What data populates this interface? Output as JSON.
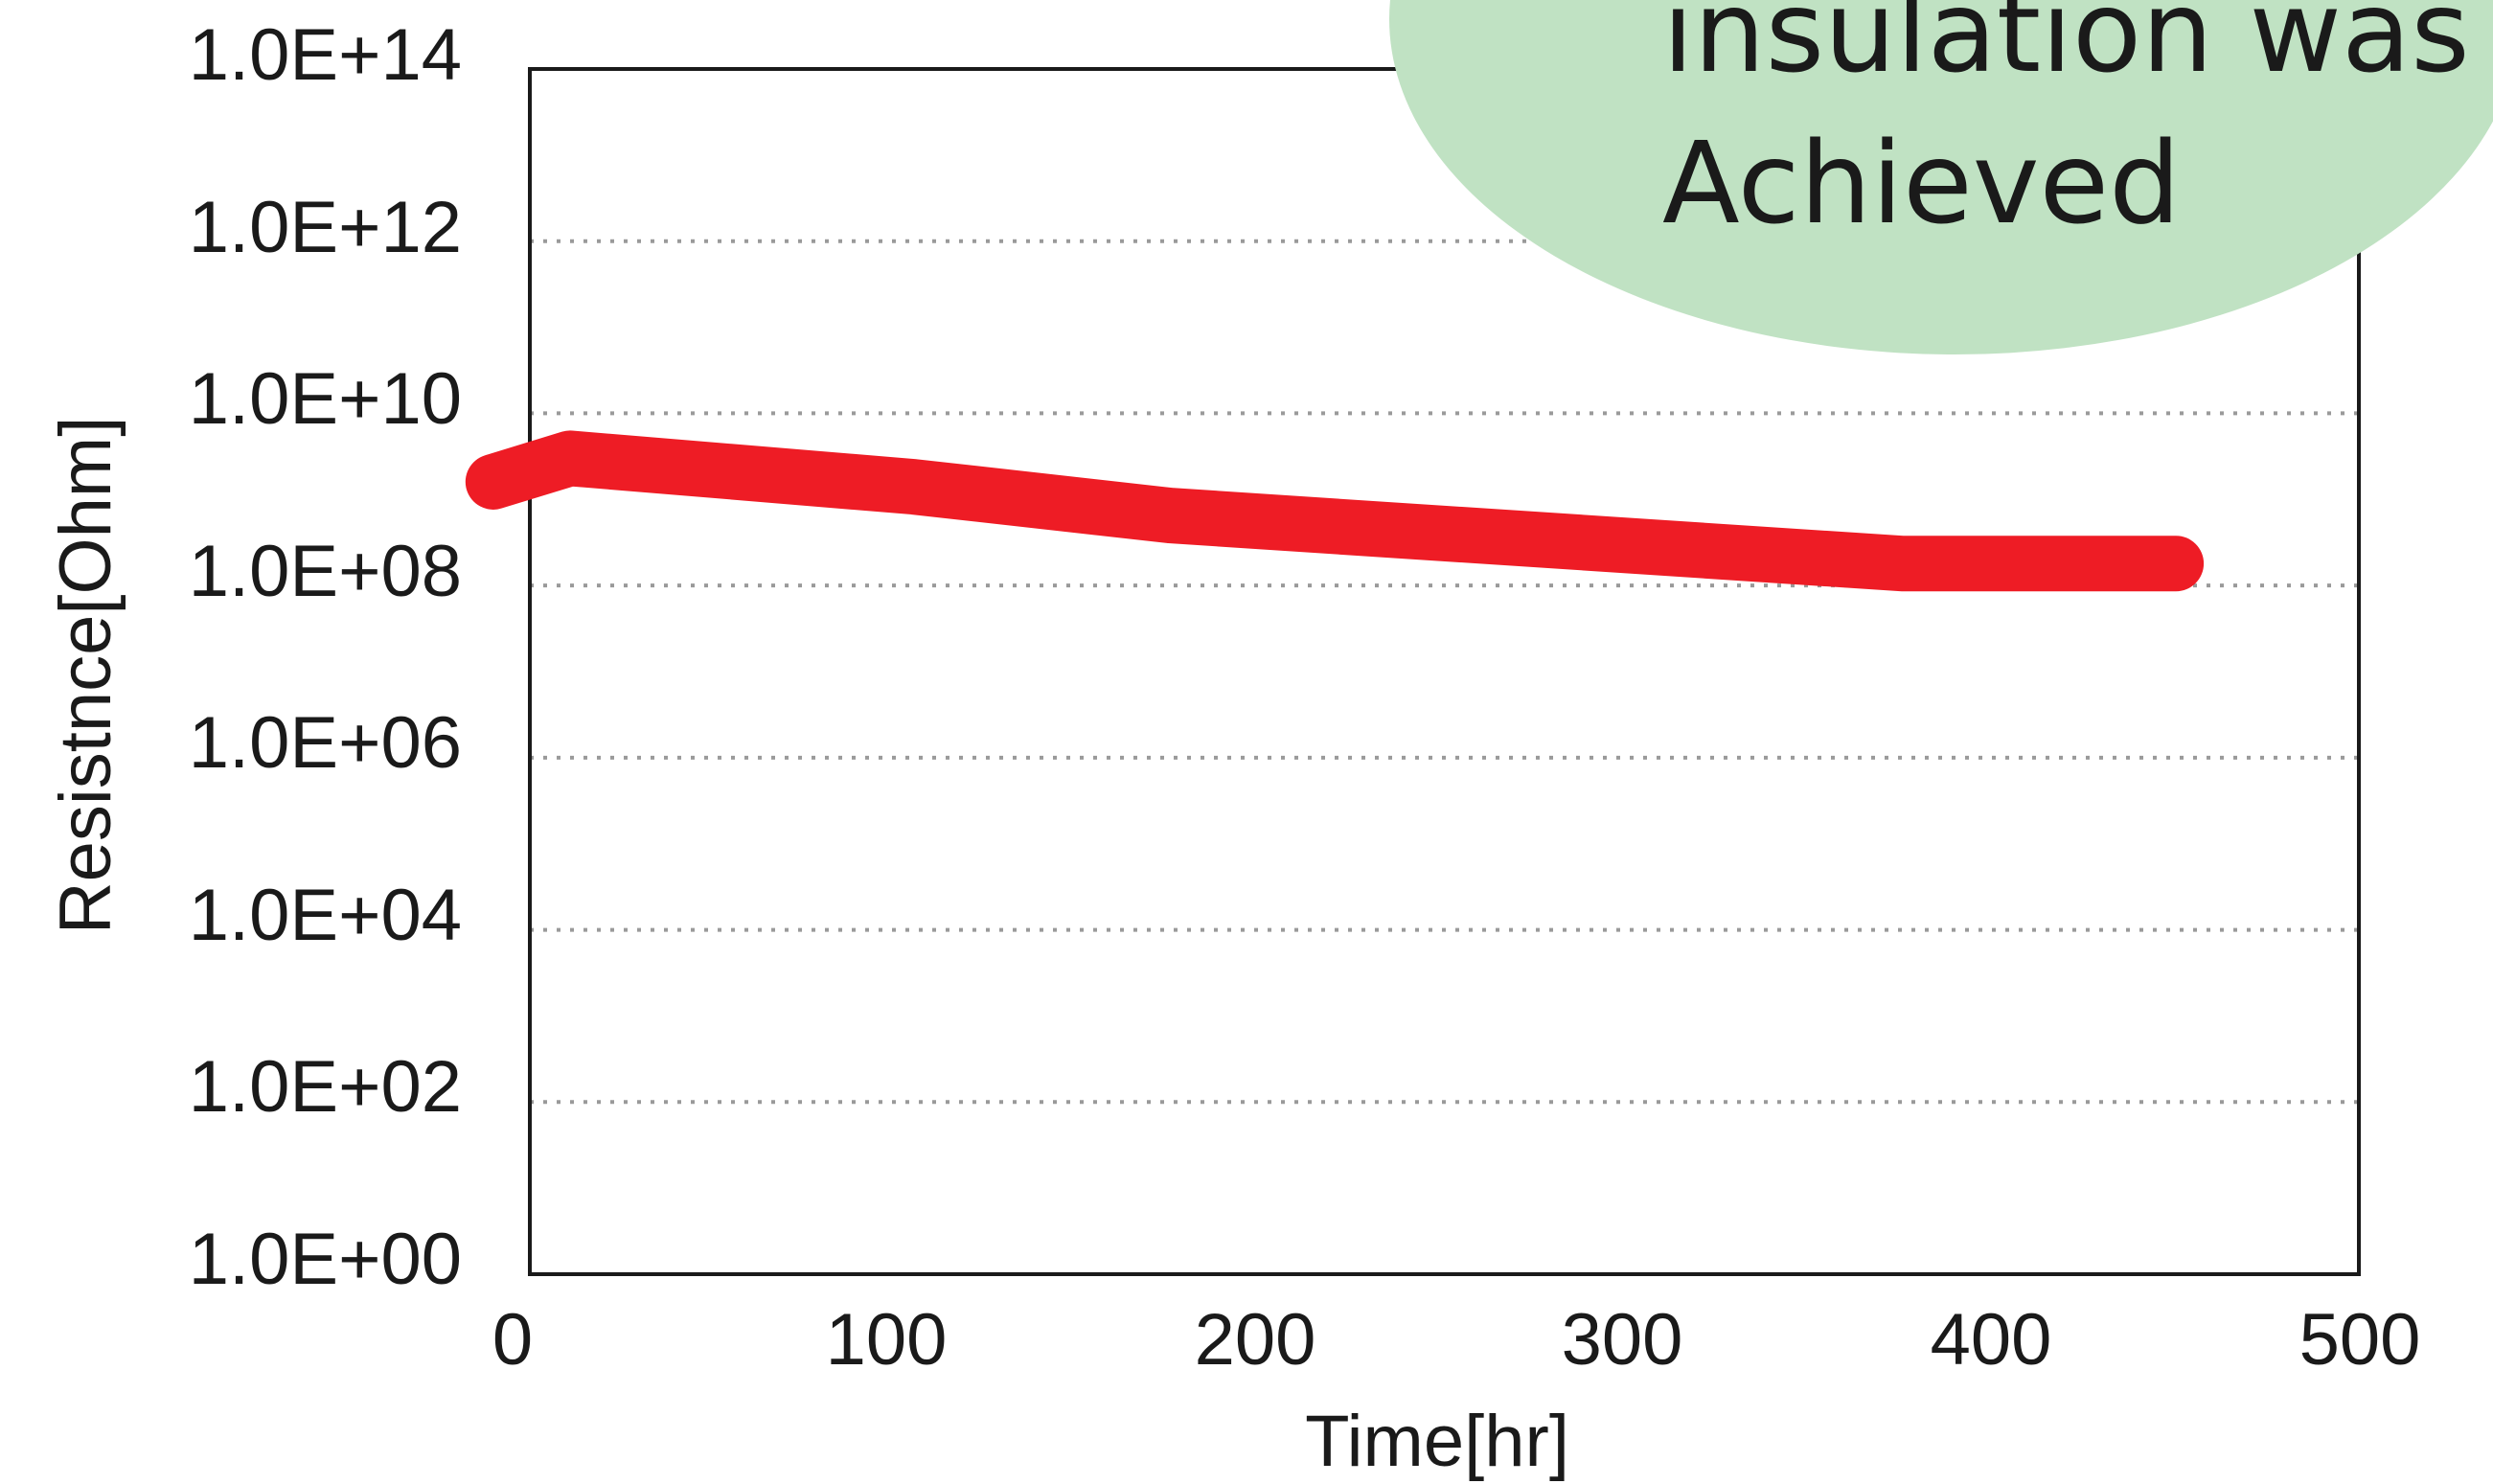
{
  "chart_data": {
    "type": "line",
    "title": "",
    "xlabel": "Time[hr]",
    "ylabel": "Resistnce[Ohm]",
    "xlim": [
      0,
      500
    ],
    "ylim": [
      1,
      100000000000000
    ],
    "y_scale": "log",
    "x_ticks": [
      "0",
      "100",
      "200",
      "300",
      "400",
      "500"
    ],
    "y_ticks": [
      "1.0E+00",
      "1.0E+02",
      "1.0E+04",
      "1.0E+06",
      "1.0E+08",
      "1.0E+10",
      "1.0E+12",
      "1.0E+14"
    ],
    "grid": "horizontal-dotted",
    "series": [
      {
        "color": "#ee1c25",
        "points": [
          {
            "x": -10,
            "y": 1600000000
          },
          {
            "x": 11,
            "y": 3000000000
          },
          {
            "x": 105,
            "y": 1400000000
          },
          {
            "x": 175,
            "y": 650000000
          },
          {
            "x": 375,
            "y": 180000000
          },
          {
            "x": 450,
            "y": 180000000
          }
        ]
      }
    ],
    "annotation": {
      "lines": [
        "insulation was",
        "Achieved"
      ],
      "background": "#c0e2c3"
    }
  }
}
